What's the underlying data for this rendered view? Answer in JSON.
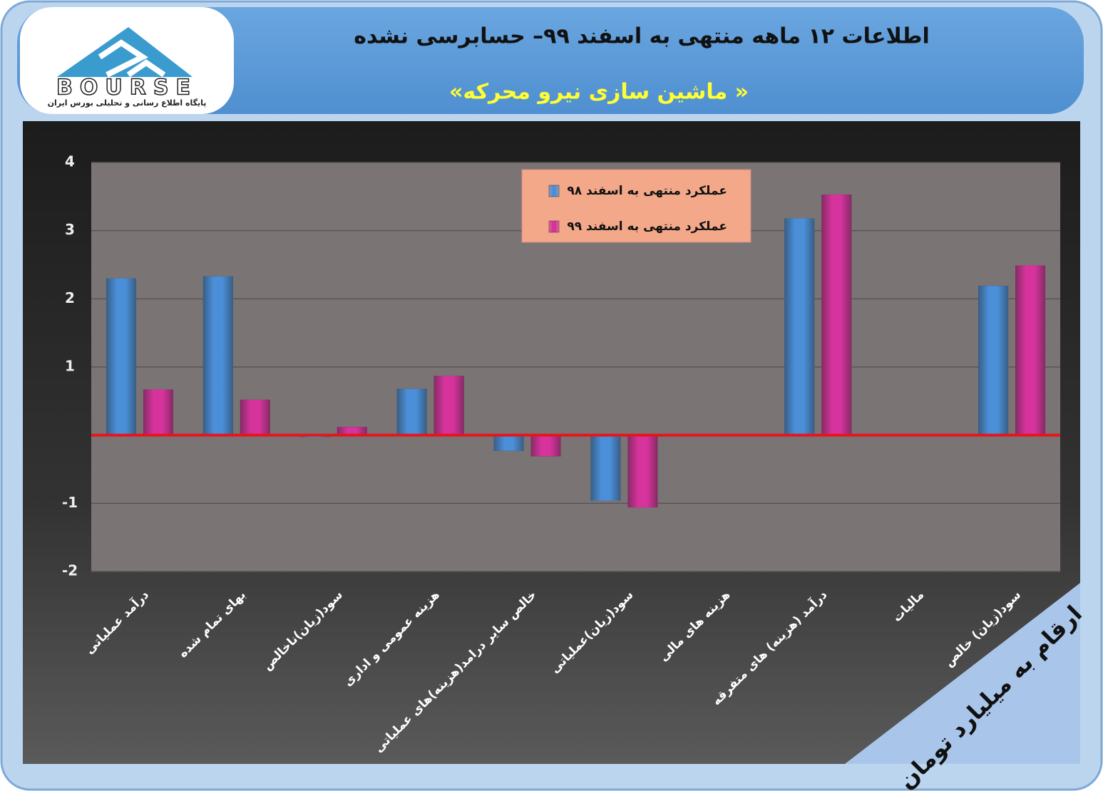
{
  "logo": {
    "name": "BOURSE",
    "tagline": "پایگاه اطلاع رسانی و تحلیلی بورس ایران"
  },
  "chart_data": {
    "type": "bar",
    "title": "اطلاعات ۱۲ ماهه منتهی به اسفند ۹۹– حسابرسی نشده",
    "subtitle": "«ماشین سازی نیرو محرکه »",
    "note": "ارقام به میلیارد تومان",
    "categories": [
      "درآمد عملیاتی",
      "بهای تمام شده",
      "سود(زیان)ناخالص",
      "هزینه عمومی و اداری",
      "خالص سایر درامد(هزینه)های عملیاتی",
      "سود(زیان)عملیاتی",
      "هزینه های مالی",
      "درآمد (هزینه) های متفرقه",
      "مالیات",
      "سود(زیان) خالص"
    ],
    "series": [
      {
        "name": "عملکرد منتهی به اسفند ۹۸",
        "color": "#4a8fd8",
        "values": [
          2.3,
          2.33,
          -0.03,
          0.68,
          -0.23,
          -0.96,
          0,
          3.18,
          0,
          2.19
        ]
      },
      {
        "name": "عملکرد منتهی به اسفند ۹۹",
        "color": "#d6339c",
        "values": [
          0.67,
          0.52,
          0.12,
          0.87,
          -0.31,
          -1.06,
          0,
          3.53,
          0,
          2.49
        ]
      }
    ],
    "ylim": [
      -2,
      4
    ],
    "yticks": [
      -2,
      -1,
      1,
      2,
      3,
      4
    ],
    "grid": true,
    "legend": "top-center"
  }
}
